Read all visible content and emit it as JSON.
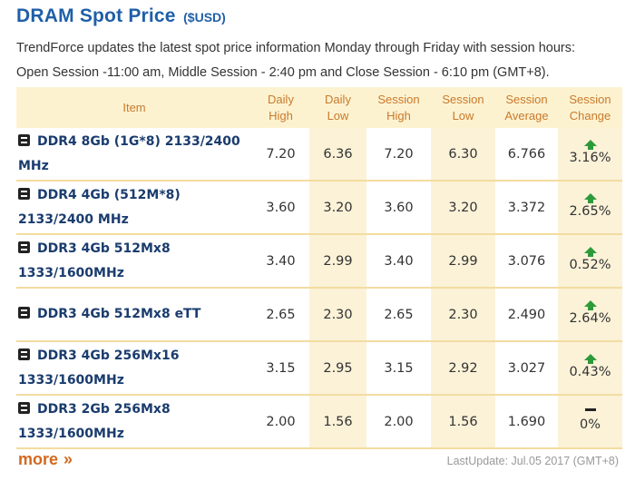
{
  "title": "DRAM Spot Price",
  "unit": "($USD)",
  "description_line1": "TrendForce updates the latest spot price information Monday through Friday with session hours:",
  "description_line2": "Open Session -11:00 am, Middle Session - 2:40 pm and Close Session - 6:10 pm (GMT+8).",
  "columns": {
    "item": "Item",
    "daily_high": [
      "Daily",
      "High"
    ],
    "daily_low": [
      "Daily",
      "Low"
    ],
    "session_high": [
      "Session",
      "High"
    ],
    "session_low": [
      "Session",
      "Low"
    ],
    "session_avg": [
      "Session",
      "Average"
    ],
    "session_change": [
      "Session",
      "Change"
    ]
  },
  "rows": [
    {
      "name_l1": "DDR4 8Gb (1G*8) 2133/2400",
      "name_l2": "MHz",
      "daily_high": "7.20",
      "daily_low": "6.36",
      "session_high": "7.20",
      "session_low": "6.30",
      "session_avg": "6.766",
      "change": "3.16%",
      "trend": "up"
    },
    {
      "name_l1": "DDR4 4Gb (512M*8)",
      "name_l2": "2133/2400 MHz",
      "daily_high": "3.60",
      "daily_low": "3.20",
      "session_high": "3.60",
      "session_low": "3.20",
      "session_avg": "3.372",
      "change": "2.65%",
      "trend": "up"
    },
    {
      "name_l1": "DDR3 4Gb 512Mx8",
      "name_l2": "1333/1600MHz",
      "daily_high": "3.40",
      "daily_low": "2.99",
      "session_high": "3.40",
      "session_low": "2.99",
      "session_avg": "3.076",
      "change": "0.52%",
      "trend": "up"
    },
    {
      "name_l1": "DDR3 4Gb 512Mx8 eTT",
      "name_l2": "",
      "daily_high": "2.65",
      "daily_low": "2.30",
      "session_high": "2.65",
      "session_low": "2.30",
      "session_avg": "2.490",
      "change": "2.64%",
      "trend": "up"
    },
    {
      "name_l1": "DDR3 4Gb 256Mx16",
      "name_l2": "1333/1600MHz",
      "daily_high": "3.15",
      "daily_low": "2.95",
      "session_high": "3.15",
      "session_low": "2.92",
      "session_avg": "3.027",
      "change": "0.43%",
      "trend": "up"
    },
    {
      "name_l1": "DDR3 2Gb 256Mx8",
      "name_l2": "1333/1600MHz",
      "daily_high": "2.00",
      "daily_low": "1.56",
      "session_high": "2.00",
      "session_low": "1.56",
      "session_avg": "1.690",
      "change": "0%",
      "trend": "flat"
    }
  ],
  "more_label": "more",
  "more_arrow": "»",
  "last_update": "LastUpdate: Jul.05 2017 (GMT+8)",
  "colors": {
    "title": "#1f5fa8",
    "header_text": "#c87a2c",
    "header_bg": "#fdf2d0",
    "up": "#2d9a3a",
    "more": "#d2691e"
  }
}
